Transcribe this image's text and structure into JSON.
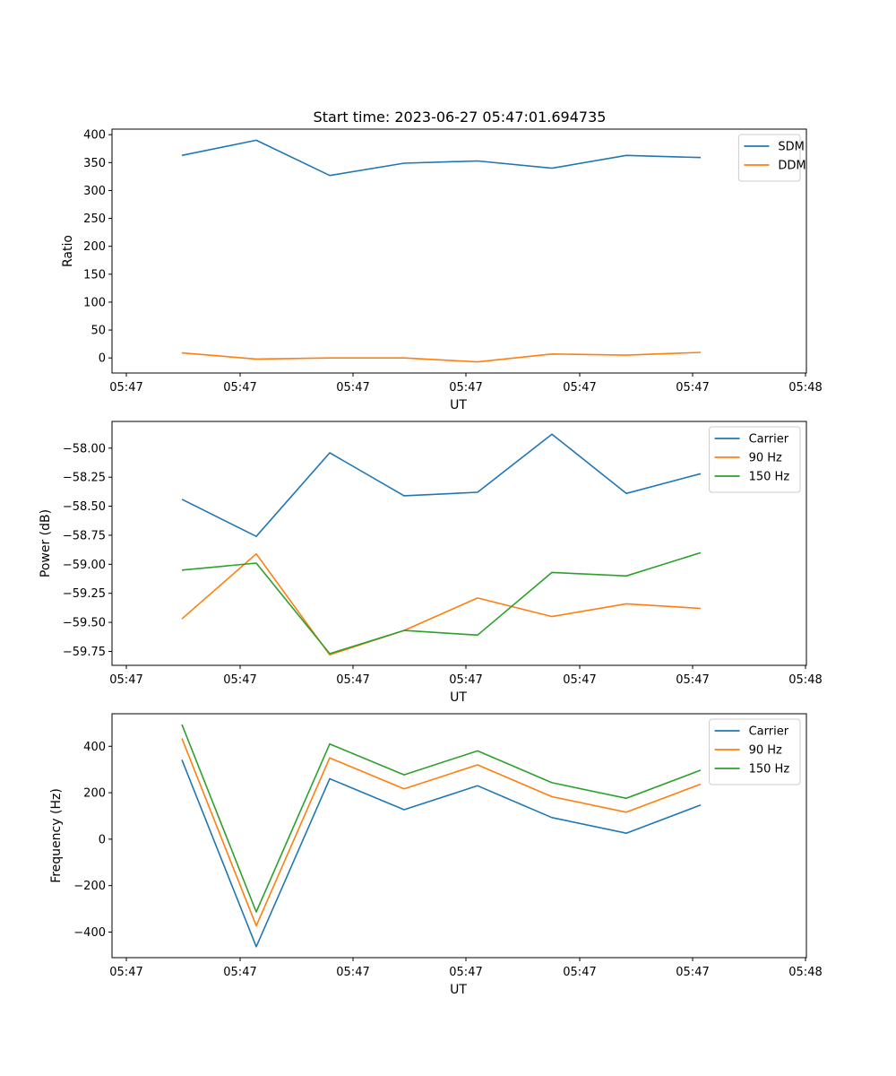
{
  "figure": {
    "title": "Start time: 2023-06-27 05:47:01.694735"
  },
  "chart_data": [
    {
      "type": "line",
      "xlabel": "UT",
      "ylabel": "Ratio",
      "xtick_labels": [
        "05:47",
        "05:47",
        "05:47",
        "05:47",
        "05:47",
        "05:47",
        "05:48"
      ],
      "ylim": [
        -27,
        410
      ],
      "yticks": [
        0,
        50,
        100,
        150,
        200,
        250,
        300,
        350,
        400
      ],
      "ytick_labels": [
        "0",
        "50",
        "100",
        "150",
        "200",
        "250",
        "300",
        "350",
        "400"
      ],
      "legend_position": "top-right",
      "series": [
        {
          "name": "SDM",
          "color": "#1f77b4",
          "values": [
            363,
            390,
            327,
            349,
            353,
            340,
            363,
            359
          ]
        },
        {
          "name": "DDM",
          "color": "#ff7f0e",
          "values": [
            9,
            -2,
            0,
            0,
            -7,
            7,
            5,
            10
          ]
        }
      ]
    },
    {
      "type": "line",
      "xlabel": "UT",
      "ylabel": "Power (dB)",
      "xtick_labels": [
        "05:47",
        "05:47",
        "05:47",
        "05:47",
        "05:47",
        "05:47",
        "05:48"
      ],
      "ylim": [
        -59.87,
        -57.77
      ],
      "yticks": [
        -59.75,
        -59.5,
        -59.25,
        -59.0,
        -58.75,
        -58.5,
        -58.25,
        -58.0
      ],
      "ytick_labels": [
        "−59.75",
        "−59.50",
        "−59.25",
        "−59.00",
        "−58.75",
        "−58.50",
        "−58.25",
        "−58.00"
      ],
      "legend_position": "top-right",
      "series": [
        {
          "name": "Carrier",
          "color": "#1f77b4",
          "values": [
            -58.44,
            -58.76,
            -58.04,
            -58.41,
            -58.38,
            -57.88,
            -58.39,
            -58.22
          ]
        },
        {
          "name": "90 Hz",
          "color": "#ff7f0e",
          "values": [
            -59.47,
            -58.91,
            -59.78,
            -59.57,
            -59.29,
            -59.45,
            -59.34,
            -59.38
          ]
        },
        {
          "name": "150 Hz",
          "color": "#2ca02c",
          "values": [
            -59.05,
            -58.99,
            -59.77,
            -59.57,
            -59.61,
            -59.07,
            -59.1,
            -58.9
          ]
        }
      ]
    },
    {
      "type": "line",
      "xlabel": "UT",
      "ylabel": "Frequency (Hz)",
      "xtick_labels": [
        "05:47",
        "05:47",
        "05:47",
        "05:47",
        "05:47",
        "05:47",
        "05:48"
      ],
      "ylim": [
        -510,
        540
      ],
      "yticks": [
        -400,
        -200,
        0,
        200,
        400
      ],
      "ytick_labels": [
        "−400",
        "−200",
        "0",
        "200",
        "400"
      ],
      "legend_position": "top-right",
      "series": [
        {
          "name": "Carrier",
          "color": "#1f77b4",
          "values": [
            342,
            -463,
            260,
            127,
            230,
            93,
            26,
            147
          ]
        },
        {
          "name": "90 Hz",
          "color": "#ff7f0e",
          "values": [
            434,
            -373,
            350,
            217,
            320,
            183,
            116,
            237
          ]
        },
        {
          "name": "150 Hz",
          "color": "#2ca02c",
          "values": [
            494,
            -313,
            410,
            277,
            380,
            243,
            176,
            297
          ]
        }
      ]
    }
  ]
}
